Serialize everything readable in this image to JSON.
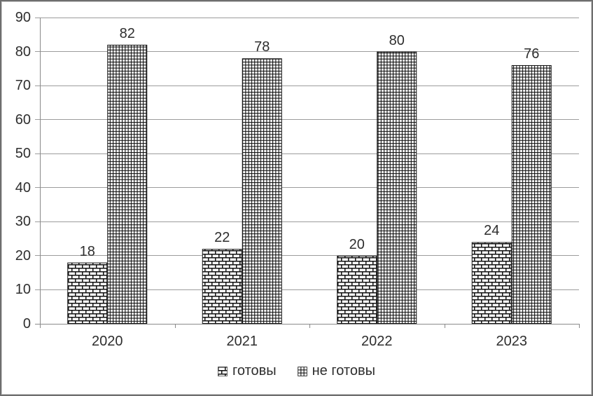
{
  "chart_data": {
    "type": "bar",
    "categories": [
      "2020",
      "2021",
      "2022",
      "2023"
    ],
    "series": [
      {
        "name": "готовы",
        "pattern": "brick",
        "values": [
          18,
          22,
          20,
          24
        ]
      },
      {
        "name": "не готовы",
        "pattern": "grid",
        "values": [
          82,
          78,
          80,
          76
        ]
      }
    ],
    "ylim": [
      0,
      90
    ],
    "ytick_step": 10,
    "grid": true,
    "data_labels": true,
    "legend_position": "bottom",
    "title": "",
    "xlabel": "",
    "ylabel": ""
  },
  "colors": {
    "grid_line": "#9c9c9c",
    "axis_line": "#8a8a8a",
    "tick": "#8a8a8a",
    "text": "#2e2e2e",
    "pattern_ink": "#111111",
    "bar_fill": "#ffffff",
    "frame_border": "#6e6e6e",
    "background": "#ffffff"
  }
}
